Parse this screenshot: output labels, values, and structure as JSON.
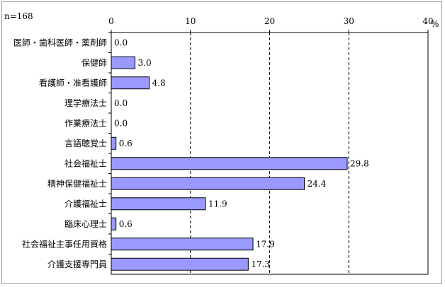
{
  "note": "n=168",
  "chart_data": {
    "type": "bar",
    "orientation": "horizontal",
    "categories": [
      "医師・歯科医師・薬剤師",
      "保健師",
      "看護師・准看護師",
      "理学療法士",
      "作業療法士",
      "言語聴覚士",
      "社会福祉士",
      "精神保健福祉士",
      "介護福祉士",
      "臨床心理士",
      "社会福祉主事任用資格",
      "介護支援専門員"
    ],
    "values": [
      0.0,
      3.0,
      4.8,
      0.0,
      0.0,
      0.6,
      29.8,
      24.4,
      11.9,
      0.6,
      17.9,
      17.3
    ],
    "value_labels": [
      "0.0",
      "3.0",
      "4.8",
      "0.0",
      "0.0",
      "0.6",
      "29.8",
      "24.4",
      "11.9",
      "0.6",
      "17.9",
      "17.3"
    ],
    "xlim": [
      0,
      40
    ],
    "ticks": [
      "0",
      "10",
      "20",
      "30",
      "40"
    ],
    "unit": "%",
    "grid": "vertical dashed",
    "bar_color": "#9999ff"
  }
}
